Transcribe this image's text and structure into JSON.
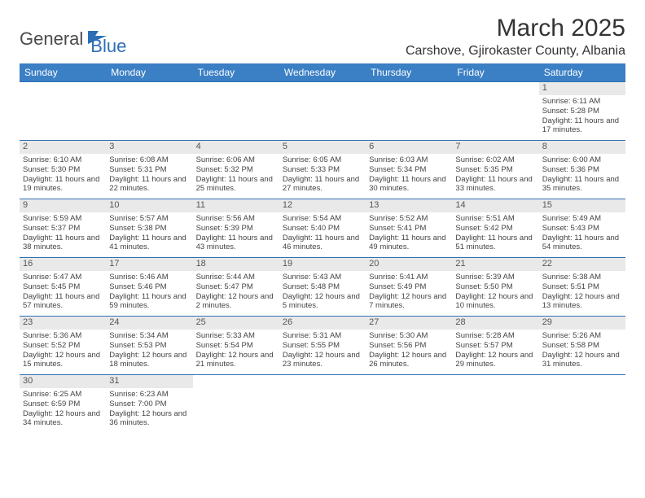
{
  "logo": {
    "general": "General",
    "blue": "Blue"
  },
  "title": "March 2025",
  "location": "Carshove, Gjirokaster County, Albania",
  "colors": {
    "header_bg": "#3b7fc4",
    "border": "#2d6fb5",
    "daynum_bg": "#e9e9e9"
  },
  "weekdays": [
    "Sunday",
    "Monday",
    "Tuesday",
    "Wednesday",
    "Thursday",
    "Friday",
    "Saturday"
  ],
  "grid": [
    [
      null,
      null,
      null,
      null,
      null,
      null,
      {
        "n": "1",
        "sr": "6:11 AM",
        "ss": "5:28 PM",
        "dl": "11 hours and 17 minutes."
      }
    ],
    [
      {
        "n": "2",
        "sr": "6:10 AM",
        "ss": "5:30 PM",
        "dl": "11 hours and 19 minutes."
      },
      {
        "n": "3",
        "sr": "6:08 AM",
        "ss": "5:31 PM",
        "dl": "11 hours and 22 minutes."
      },
      {
        "n": "4",
        "sr": "6:06 AM",
        "ss": "5:32 PM",
        "dl": "11 hours and 25 minutes."
      },
      {
        "n": "5",
        "sr": "6:05 AM",
        "ss": "5:33 PM",
        "dl": "11 hours and 27 minutes."
      },
      {
        "n": "6",
        "sr": "6:03 AM",
        "ss": "5:34 PM",
        "dl": "11 hours and 30 minutes."
      },
      {
        "n": "7",
        "sr": "6:02 AM",
        "ss": "5:35 PM",
        "dl": "11 hours and 33 minutes."
      },
      {
        "n": "8",
        "sr": "6:00 AM",
        "ss": "5:36 PM",
        "dl": "11 hours and 35 minutes."
      }
    ],
    [
      {
        "n": "9",
        "sr": "5:59 AM",
        "ss": "5:37 PM",
        "dl": "11 hours and 38 minutes."
      },
      {
        "n": "10",
        "sr": "5:57 AM",
        "ss": "5:38 PM",
        "dl": "11 hours and 41 minutes."
      },
      {
        "n": "11",
        "sr": "5:56 AM",
        "ss": "5:39 PM",
        "dl": "11 hours and 43 minutes."
      },
      {
        "n": "12",
        "sr": "5:54 AM",
        "ss": "5:40 PM",
        "dl": "11 hours and 46 minutes."
      },
      {
        "n": "13",
        "sr": "5:52 AM",
        "ss": "5:41 PM",
        "dl": "11 hours and 49 minutes."
      },
      {
        "n": "14",
        "sr": "5:51 AM",
        "ss": "5:42 PM",
        "dl": "11 hours and 51 minutes."
      },
      {
        "n": "15",
        "sr": "5:49 AM",
        "ss": "5:43 PM",
        "dl": "11 hours and 54 minutes."
      }
    ],
    [
      {
        "n": "16",
        "sr": "5:47 AM",
        "ss": "5:45 PM",
        "dl": "11 hours and 57 minutes."
      },
      {
        "n": "17",
        "sr": "5:46 AM",
        "ss": "5:46 PM",
        "dl": "11 hours and 59 minutes."
      },
      {
        "n": "18",
        "sr": "5:44 AM",
        "ss": "5:47 PM",
        "dl": "12 hours and 2 minutes."
      },
      {
        "n": "19",
        "sr": "5:43 AM",
        "ss": "5:48 PM",
        "dl": "12 hours and 5 minutes."
      },
      {
        "n": "20",
        "sr": "5:41 AM",
        "ss": "5:49 PM",
        "dl": "12 hours and 7 minutes."
      },
      {
        "n": "21",
        "sr": "5:39 AM",
        "ss": "5:50 PM",
        "dl": "12 hours and 10 minutes."
      },
      {
        "n": "22",
        "sr": "5:38 AM",
        "ss": "5:51 PM",
        "dl": "12 hours and 13 minutes."
      }
    ],
    [
      {
        "n": "23",
        "sr": "5:36 AM",
        "ss": "5:52 PM",
        "dl": "12 hours and 15 minutes."
      },
      {
        "n": "24",
        "sr": "5:34 AM",
        "ss": "5:53 PM",
        "dl": "12 hours and 18 minutes."
      },
      {
        "n": "25",
        "sr": "5:33 AM",
        "ss": "5:54 PM",
        "dl": "12 hours and 21 minutes."
      },
      {
        "n": "26",
        "sr": "5:31 AM",
        "ss": "5:55 PM",
        "dl": "12 hours and 23 minutes."
      },
      {
        "n": "27",
        "sr": "5:30 AM",
        "ss": "5:56 PM",
        "dl": "12 hours and 26 minutes."
      },
      {
        "n": "28",
        "sr": "5:28 AM",
        "ss": "5:57 PM",
        "dl": "12 hours and 29 minutes."
      },
      {
        "n": "29",
        "sr": "5:26 AM",
        "ss": "5:58 PM",
        "dl": "12 hours and 31 minutes."
      }
    ],
    [
      {
        "n": "30",
        "sr": "6:25 AM",
        "ss": "6:59 PM",
        "dl": "12 hours and 34 minutes."
      },
      {
        "n": "31",
        "sr": "6:23 AM",
        "ss": "7:00 PM",
        "dl": "12 hours and 36 minutes."
      },
      null,
      null,
      null,
      null,
      null
    ]
  ],
  "labels": {
    "sunrise": "Sunrise:",
    "sunset": "Sunset:",
    "daylight": "Daylight:"
  }
}
